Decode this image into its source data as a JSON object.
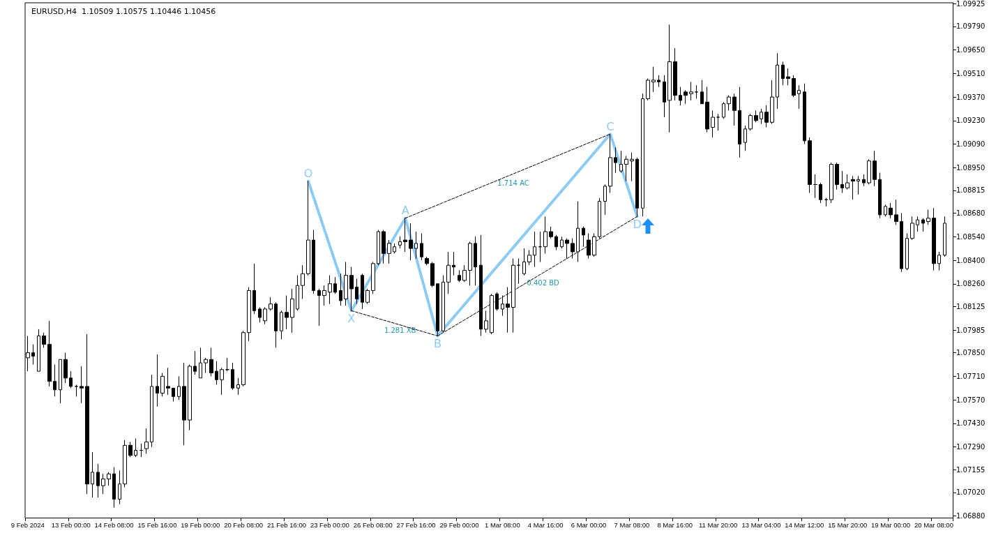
{
  "chart_data": {
    "type": "candlestick",
    "title": "EURUSD,H4  1.10509 1.10575 1.10446 1.10456",
    "categories": [
      "9 Feb 2024",
      null,
      null,
      null,
      null,
      null,
      null,
      null,
      "13 Feb 00:00",
      null,
      null,
      null,
      null,
      null,
      null,
      null,
      "14 Feb 08:00",
      null,
      null,
      null,
      null,
      null,
      null,
      null,
      "15 Feb 16:00",
      null,
      null,
      null,
      null,
      null,
      null,
      null,
      "19 Feb 00:00",
      null,
      null,
      null,
      null,
      null,
      null,
      null,
      "20 Feb 08:00",
      null,
      null,
      null,
      null,
      null,
      null,
      null,
      "21 Feb 16:00",
      null,
      null,
      null,
      null,
      null,
      null,
      null,
      "23 Feb 00:00",
      null,
      null,
      null,
      null,
      null,
      null,
      null,
      "26 Feb 08:00",
      null,
      null,
      null,
      null,
      null,
      null,
      null,
      "27 Feb 16:00",
      null,
      null,
      null,
      null,
      null,
      null,
      null,
      "29 Feb 00:00",
      null,
      null,
      null,
      null,
      null,
      null,
      null,
      "1 Mar 08:00",
      null,
      null,
      null,
      null,
      null,
      null,
      null,
      "4 Mar 16:00",
      null,
      null,
      null,
      null,
      null,
      null,
      null,
      "6 Mar 00:00",
      null,
      null,
      null,
      null,
      null,
      null,
      null,
      "7 Mar 08:00",
      null,
      null,
      null,
      null,
      null,
      null,
      null,
      "8 Mar 16:00",
      null,
      null,
      null,
      null,
      null,
      null,
      null,
      "11 Mar 20:00",
      null,
      null,
      null,
      null,
      null,
      null,
      null,
      "13 Mar 04:00",
      null,
      null,
      null,
      null,
      null,
      null,
      null,
      "14 Mar 12:00",
      null,
      null,
      null,
      null,
      null,
      null,
      null,
      "15 Mar 20:00",
      null,
      null,
      null,
      null,
      null,
      null,
      null,
      "19 Mar 00:00",
      null,
      null,
      null,
      null,
      null,
      null,
      null,
      "20 Mar 08:00",
      null,
      null
    ],
    "ohlc": [
      [
        1.0782,
        1.0795,
        1.0774,
        1.0785
      ],
      [
        1.0785,
        1.079,
        1.0778,
        1.0783
      ],
      [
        1.0774,
        1.0799,
        1.0774,
        1.0795
      ],
      [
        1.0795,
        1.0797,
        1.0788,
        1.079
      ],
      [
        1.079,
        1.0804,
        1.0765,
        1.0768
      ],
      [
        1.0768,
        1.0778,
        1.0759,
        1.0763
      ],
      [
        1.0763,
        1.0781,
        1.0755,
        1.0781
      ],
      [
        1.0781,
        1.0785,
        1.0767,
        1.077
      ],
      [
        1.077,
        1.0774,
        1.0764,
        1.0765
      ],
      [
        1.0765,
        1.0766,
        1.0759,
        1.0765
      ],
      [
        1.0765,
        1.0777,
        1.0755,
        1.0764
      ],
      [
        1.0765,
        1.0796,
        1.0701,
        1.0707
      ],
      [
        1.0707,
        1.0726,
        1.0699,
        1.0714
      ],
      [
        1.0714,
        1.0719,
        1.0699,
        1.0706
      ],
      [
        1.0706,
        1.0713,
        1.0701,
        1.071
      ],
      [
        1.071,
        1.0714,
        1.0706,
        1.0713
      ],
      [
        1.0713,
        1.0717,
        1.0693,
        1.0698
      ],
      [
        1.0698,
        1.0715,
        1.0695,
        1.0707
      ],
      [
        1.0707,
        1.0733,
        1.0705,
        1.073
      ],
      [
        1.073,
        1.0732,
        1.0723,
        1.0724
      ],
      [
        1.0724,
        1.0734,
        1.0723,
        1.0727
      ],
      [
        1.0727,
        1.0731,
        1.0723,
        1.0727
      ],
      [
        1.0728,
        1.074,
        1.0725,
        1.0732
      ],
      [
        1.0732,
        1.0772,
        1.0729,
        1.0765
      ],
      [
        1.0765,
        1.0784,
        1.0753,
        1.0761
      ],
      [
        1.0761,
        1.0773,
        1.0759,
        1.0771
      ],
      [
        1.0765,
        1.0776,
        1.076,
        1.0764
      ],
      [
        1.0764,
        1.0764,
        1.0756,
        1.0759
      ],
      [
        1.0759,
        1.0771,
        1.0757,
        1.0765
      ],
      [
        1.0765,
        1.0779,
        1.073,
        1.0745
      ],
      [
        1.0745,
        1.0778,
        1.0739,
        1.0777
      ],
      [
        1.0777,
        1.0786,
        1.0772,
        1.0774
      ],
      [
        1.077,
        1.0788,
        1.077,
        1.0779
      ],
      [
        1.0779,
        1.0782,
        1.0773,
        1.0781
      ],
      [
        1.0781,
        1.0788,
        1.0771,
        1.0773
      ],
      [
        1.0774,
        1.078,
        1.0766,
        1.0769
      ],
      [
        1.0769,
        1.0776,
        1.076,
        1.0775
      ],
      [
        1.0775,
        1.0782,
        1.0774,
        1.0775
      ],
      [
        1.0775,
        1.0779,
        1.0763,
        1.0764
      ],
      [
        1.0764,
        1.077,
        1.076,
        1.0766
      ],
      [
        1.0766,
        1.0798,
        1.0765,
        1.0797
      ],
      [
        1.0797,
        1.0824,
        1.0792,
        1.0822
      ],
      [
        1.0822,
        1.0838,
        1.0808,
        1.081
      ],
      [
        1.0811,
        1.0812,
        1.0803,
        1.0806
      ],
      [
        1.0804,
        1.0812,
        1.0802,
        1.0811
      ],
      [
        1.0811,
        1.0818,
        1.081,
        1.0814
      ],
      [
        1.0814,
        1.0815,
        1.0788,
        1.0798
      ],
      [
        1.0798,
        1.081,
        1.0793,
        1.0809
      ],
      [
        1.0809,
        1.0819,
        1.0799,
        1.0806
      ],
      [
        1.0806,
        1.0823,
        1.0797,
        1.0817
      ],
      [
        1.0811,
        1.0831,
        1.081,
        1.0825
      ],
      [
        1.0825,
        1.0837,
        1.0817,
        1.0832
      ],
      [
        1.0832,
        1.0887,
        1.0831,
        1.0852
      ],
      [
        1.0852,
        1.0858,
        1.082,
        1.0822
      ],
      [
        1.0822,
        1.0823,
        1.0801,
        1.0819
      ],
      [
        1.0819,
        1.0825,
        1.0813,
        1.0822
      ],
      [
        1.0821,
        1.0831,
        1.0814,
        1.0826
      ],
      [
        1.0826,
        1.083,
        1.082,
        1.0821
      ],
      [
        1.0822,
        1.0832,
        1.0813,
        1.0816
      ],
      [
        1.0817,
        1.0839,
        1.0813,
        1.0831
      ],
      [
        1.0831,
        1.0836,
        1.081,
        1.0823
      ],
      [
        1.0824,
        1.0829,
        1.0814,
        1.0817
      ],
      [
        1.0831,
        1.0832,
        1.0811,
        1.0815
      ],
      [
        1.0815,
        1.0823,
        1.0814,
        1.0822
      ],
      [
        1.0822,
        1.0839,
        1.082,
        1.0838
      ],
      [
        1.0838,
        1.0858,
        1.0837,
        1.0857
      ],
      [
        1.0857,
        1.0858,
        1.0838,
        1.0844
      ],
      [
        1.0844,
        1.0852,
        1.0838,
        1.085
      ],
      [
        1.0845,
        1.085,
        1.0844,
        1.0848
      ],
      [
        1.0849,
        1.0854,
        1.0847,
        1.0851
      ],
      [
        1.0852,
        1.0865,
        1.0845,
        1.0851
      ],
      [
        1.0852,
        1.0862,
        1.084,
        1.0847
      ],
      [
        1.0847,
        1.0857,
        1.0841,
        1.085
      ],
      [
        1.085,
        1.0856,
        1.084,
        1.0842
      ],
      [
        1.0841,
        1.0842,
        1.0837,
        1.0838
      ],
      [
        1.0838,
        1.0839,
        1.0824,
        1.0825
      ],
      [
        1.0826,
        1.0826,
        1.0795,
        1.0798
      ],
      [
        1.0798,
        1.0831,
        1.0797,
        1.0827
      ],
      [
        1.0827,
        1.0845,
        1.082,
        1.0837
      ],
      [
        1.0837,
        1.0845,
        1.0831,
        1.0836
      ],
      [
        1.0831,
        1.0834,
        1.0827,
        1.0828
      ],
      [
        1.0828,
        1.0837,
        1.0827,
        1.0834
      ],
      [
        1.0834,
        1.0851,
        1.0825,
        1.085
      ],
      [
        1.085,
        1.0854,
        1.0825,
        1.0836
      ],
      [
        1.0837,
        1.0855,
        1.0795,
        1.0799
      ],
      [
        1.0799,
        1.081,
        1.0797,
        1.0804
      ],
      [
        1.0797,
        1.082,
        1.0796,
        1.0819
      ],
      [
        1.082,
        1.0821,
        1.081,
        1.0811
      ],
      [
        1.0811,
        1.0819,
        1.0807,
        1.0814
      ],
      [
        1.0814,
        1.0824,
        1.0797,
        1.0812
      ],
      [
        1.0812,
        1.0841,
        1.0797,
        1.0837
      ],
      [
        1.0837,
        1.0841,
        1.0826,
        1.0837
      ],
      [
        1.0832,
        1.0847,
        1.0831,
        1.0839
      ],
      [
        1.0839,
        1.0846,
        1.0837,
        1.0843
      ],
      [
        1.0843,
        1.0857,
        1.0836,
        1.0848
      ],
      [
        1.0848,
        1.0857,
        1.0839,
        1.0848
      ],
      [
        1.0848,
        1.0866,
        1.0844,
        1.0857
      ],
      [
        1.0857,
        1.086,
        1.0853,
        1.0854
      ],
      [
        1.0854,
        1.0855,
        1.0846,
        1.0848
      ],
      [
        1.0848,
        1.0854,
        1.0847,
        1.0852
      ],
      [
        1.0852,
        1.0853,
        1.0841,
        1.085
      ],
      [
        1.085,
        1.0853,
        1.0841,
        1.0845
      ],
      [
        1.0845,
        1.0875,
        1.0839,
        1.0859
      ],
      [
        1.0859,
        1.086,
        1.0848,
        1.0855
      ],
      [
        1.0852,
        1.0856,
        1.0841,
        1.0843
      ],
      [
        1.0843,
        1.0856,
        1.0842,
        1.0854
      ],
      [
        1.0854,
        1.0877,
        1.0853,
        1.0875
      ],
      [
        1.0875,
        1.0885,
        1.0867,
        1.0884
      ],
      [
        1.0884,
        1.0915,
        1.088,
        1.0901
      ],
      [
        1.0901,
        1.0907,
        1.0892,
        1.0898
      ],
      [
        1.0893,
        1.0905,
        1.0892,
        1.0897
      ],
      [
        1.0897,
        1.0902,
        1.0887,
        1.09
      ],
      [
        1.0899,
        1.0904,
        1.0887,
        1.09
      ],
      [
        1.09,
        1.0901,
        1.0866,
        1.0871
      ],
      [
        1.0871,
        1.0939,
        1.0866,
        1.0936
      ],
      [
        1.0936,
        1.0948,
        1.0935,
        1.0947
      ],
      [
        1.0946,
        1.0955,
        1.094,
        1.0947
      ],
      [
        1.0947,
        1.095,
        1.0943,
        1.0946
      ],
      [
        1.0946,
        1.095,
        1.0925,
        1.0934
      ],
      [
        1.0935,
        1.098,
        1.0916,
        1.0958
      ],
      [
        1.0958,
        1.0966,
        1.0935,
        1.0938
      ],
      [
        1.0938,
        1.0943,
        1.0932,
        1.0935
      ],
      [
        1.094,
        1.0941,
        1.0933,
        1.0938
      ],
      [
        1.0939,
        1.0946,
        1.0935,
        1.094
      ],
      [
        1.094,
        1.0944,
        1.0936,
        1.094
      ],
      [
        1.094,
        1.0947,
        1.0933,
        1.0933
      ],
      [
        1.0934,
        1.0943,
        1.0916,
        1.0918
      ],
      [
        1.0919,
        1.0929,
        1.0913,
        1.0925
      ],
      [
        1.0925,
        1.0927,
        1.0917,
        1.0925
      ],
      [
        1.0925,
        1.0934,
        1.0924,
        1.0933
      ],
      [
        1.0933,
        1.0938,
        1.0929,
        1.0937
      ],
      [
        1.0937,
        1.0939,
        1.092,
        1.0929
      ],
      [
        1.0929,
        1.0943,
        1.0901,
        1.0909
      ],
      [
        1.091,
        1.092,
        1.0905,
        1.0918
      ],
      [
        1.0918,
        1.0927,
        1.0917,
        1.0926
      ],
      [
        1.0926,
        1.0929,
        1.0922,
        1.0923
      ],
      [
        1.0924,
        1.093,
        1.0921,
        1.0928
      ],
      [
        1.0928,
        1.0932,
        1.0919,
        1.0922
      ],
      [
        1.0922,
        1.0947,
        1.0921,
        1.0937
      ],
      [
        1.0937,
        1.0963,
        1.093,
        1.0956
      ],
      [
        1.0956,
        1.0958,
        1.0944,
        1.0948
      ],
      [
        1.0949,
        1.0954,
        1.0944,
        1.0948
      ],
      [
        1.0948,
        1.095,
        1.0937,
        1.0938
      ],
      [
        1.0939,
        1.0944,
        1.093,
        1.0941
      ],
      [
        1.094,
        1.0945,
        1.0909,
        1.0911
      ],
      [
        1.0911,
        1.0913,
        1.088,
        1.0885
      ],
      [
        1.0885,
        1.0891,
        1.0877,
        1.0885
      ],
      [
        1.0885,
        1.0886,
        1.0874,
        1.0876
      ],
      [
        1.0876,
        1.0877,
        1.0872,
        1.0876
      ],
      [
        1.0876,
        1.0898,
        1.0874,
        1.0897
      ],
      [
        1.0897,
        1.0898,
        1.0882,
        1.0885
      ],
      [
        1.0885,
        1.0893,
        1.088,
        1.0883
      ],
      [
        1.0883,
        1.0891,
        1.0882,
        1.0886
      ],
      [
        1.0888,
        1.089,
        1.0876,
        1.0887
      ],
      [
        1.0887,
        1.089,
        1.0879,
        1.0888
      ],
      [
        1.0888,
        1.0891,
        1.0884,
        1.0886
      ],
      [
        1.0886,
        1.09,
        1.0885,
        1.0899
      ],
      [
        1.0899,
        1.0905,
        1.0884,
        1.0888
      ],
      [
        1.0888,
        1.0892,
        1.0865,
        1.0867
      ],
      [
        1.0867,
        1.0873,
        1.0866,
        1.0872
      ],
      [
        1.0871,
        1.0874,
        1.0865,
        1.0867
      ],
      [
        1.0867,
        1.0876,
        1.0861,
        1.0863
      ],
      [
        1.0863,
        1.0868,
        1.0833,
        1.0835
      ],
      [
        1.0835,
        1.0856,
        1.0834,
        1.0853
      ],
      [
        1.0853,
        1.0866,
        1.0852,
        1.0862
      ],
      [
        1.0861,
        1.0866,
        1.0857,
        1.0864
      ],
      [
        1.0864,
        1.0865,
        1.0857,
        1.0862
      ],
      [
        1.0863,
        1.087,
        1.0861,
        1.0865
      ],
      [
        1.0865,
        1.0871,
        1.0834,
        1.0838
      ],
      [
        1.0838,
        1.0845,
        1.0834,
        1.0843
      ],
      [
        1.0843,
        1.0866,
        1.0842,
        1.0862
      ]
    ],
    "series": [
      {
        "type": "line",
        "color": "#8ccbf4",
        "line_style": "solid",
        "values": [
          null,
          null,
          null,
          null,
          null,
          null,
          null,
          null,
          null,
          null,
          null,
          null,
          null,
          null,
          null,
          null,
          null,
          null,
          null,
          null,
          null,
          null,
          null,
          null,
          null,
          null,
          null,
          null,
          null,
          null,
          null,
          null,
          null,
          null,
          null,
          null,
          null,
          null,
          null,
          null,
          null,
          null,
          null,
          null,
          null,
          null,
          null,
          null,
          null,
          null,
          null,
          null,
          1.0887,
          null,
          null,
          null,
          null,
          null,
          null,
          null,
          1.081,
          null,
          null,
          null,
          null,
          null,
          null,
          null,
          null,
          null,
          1.0865,
          null,
          null,
          null,
          null,
          null,
          1.0795,
          null,
          null,
          null,
          null,
          null,
          null,
          null,
          null,
          null,
          null,
          null,
          null,
          null,
          null,
          null,
          null,
          null,
          null,
          null,
          null,
          null,
          null,
          null,
          null,
          null,
          null,
          null,
          null,
          null,
          null,
          null,
          1.0915,
          null,
          null,
          null,
          null,
          1.0866,
          null,
          null,
          null,
          null,
          null,
          null,
          null,
          null,
          null,
          null,
          null,
          null,
          null,
          null,
          null,
          null,
          null,
          null,
          null,
          null,
          null,
          null,
          null,
          null,
          null,
          null,
          null,
          null,
          null,
          null,
          null,
          null,
          null,
          null,
          null,
          null,
          null,
          null,
          null,
          null,
          null,
          null,
          null,
          null,
          null,
          null,
          null,
          null,
          null,
          null,
          null,
          null,
          null,
          null,
          null,
          null,
          null
        ],
        "value_labels": [
          null,
          null,
          null,
          null,
          null,
          null,
          null,
          null,
          null,
          null,
          null,
          null,
          null,
          null,
          null,
          null,
          null,
          null,
          null,
          null,
          null,
          null,
          null,
          null,
          null,
          null,
          null,
          null,
          null,
          null,
          null,
          null,
          null,
          null,
          null,
          null,
          null,
          null,
          null,
          null,
          null,
          null,
          null,
          null,
          null,
          null,
          null,
          null,
          null,
          null,
          null,
          null,
          "O",
          null,
          null,
          null,
          null,
          null,
          null,
          null,
          "X",
          null,
          null,
          null,
          null,
          null,
          null,
          null,
          null,
          null,
          "A",
          null,
          null,
          null,
          null,
          null,
          "B",
          null,
          null,
          null,
          null,
          null,
          null,
          null,
          null,
          null,
          null,
          null,
          null,
          null,
          null,
          null,
          null,
          null,
          null,
          null,
          null,
          null,
          null,
          null,
          null,
          null,
          null,
          null,
          null,
          null,
          null,
          null,
          "C",
          null,
          null,
          null,
          null,
          "D",
          null,
          null,
          null,
          null,
          null,
          null,
          null,
          null,
          null,
          null,
          null,
          null,
          null,
          null,
          null,
          null,
          null,
          null,
          null,
          null,
          null,
          null,
          null,
          null,
          null,
          null,
          null,
          null,
          null,
          null,
          null,
          null,
          null,
          null,
          null,
          null,
          null,
          null,
          null,
          null,
          null,
          null,
          null,
          null,
          null,
          null,
          null,
          null,
          null,
          null,
          null,
          null,
          null,
          null,
          null,
          null,
          null
        ]
      },
      {
        "type": "line",
        "color": "#000000",
        "line_style": "dashed",
        "values": [
          null,
          null,
          null,
          null,
          null,
          null,
          null,
          null,
          null,
          null,
          null,
          null,
          null,
          null,
          null,
          null,
          null,
          null,
          null,
          null,
          null,
          null,
          null,
          null,
          null,
          null,
          null,
          null,
          null,
          null,
          null,
          null,
          null,
          null,
          null,
          null,
          null,
          null,
          null,
          null,
          null,
          null,
          null,
          null,
          null,
          null,
          null,
          null,
          null,
          null,
          null,
          null,
          null,
          null,
          null,
          null,
          null,
          null,
          null,
          null,
          1.081,
          null,
          null,
          null,
          null,
          null,
          null,
          null,
          null,
          null,
          null,
          null,
          null,
          null,
          null,
          null,
          1.0795,
          null,
          null,
          null,
          null,
          null,
          null,
          null,
          null,
          null,
          null,
          null,
          null,
          null,
          null,
          null,
          null,
          null,
          null,
          null,
          null,
          null,
          null,
          null,
          null,
          null,
          null,
          null,
          null,
          null,
          null,
          null,
          null,
          null,
          null,
          null,
          null,
          null,
          null,
          null,
          null,
          null,
          null,
          null,
          null,
          null,
          null,
          null,
          null,
          null,
          null,
          null,
          null,
          null,
          null,
          null,
          null,
          null,
          null,
          null,
          null,
          null,
          null,
          null,
          null,
          null,
          null,
          null,
          null,
          null,
          null,
          null,
          null,
          null,
          null,
          null,
          null,
          null,
          null,
          null,
          null,
          null,
          null,
          null,
          null,
          null,
          null,
          null,
          null,
          null,
          null,
          null,
          null,
          null,
          null
        ]
      },
      {
        "type": "line",
        "color": "#000000",
        "line_style": "dashed",
        "values": [
          null,
          null,
          null,
          null,
          null,
          null,
          null,
          null,
          null,
          null,
          null,
          null,
          null,
          null,
          null,
          null,
          null,
          null,
          null,
          null,
          null,
          null,
          null,
          null,
          null,
          null,
          null,
          null,
          null,
          null,
          null,
          null,
          null,
          null,
          null,
          null,
          null,
          null,
          null,
          null,
          null,
          null,
          null,
          null,
          null,
          null,
          null,
          null,
          null,
          null,
          null,
          null,
          null,
          null,
          null,
          null,
          null,
          null,
          null,
          null,
          null,
          null,
          null,
          null,
          null,
          null,
          null,
          null,
          null,
          null,
          1.0865,
          null,
          null,
          null,
          null,
          null,
          null,
          null,
          null,
          null,
          null,
          null,
          null,
          null,
          null,
          null,
          null,
          null,
          null,
          null,
          null,
          null,
          null,
          null,
          null,
          null,
          null,
          null,
          null,
          null,
          null,
          null,
          null,
          null,
          null,
          null,
          null,
          null,
          1.0915,
          null,
          null,
          null,
          null,
          null,
          null,
          null,
          null,
          null,
          null,
          null,
          null,
          null,
          null,
          null,
          null,
          null,
          null,
          null,
          null,
          null,
          null,
          null,
          null,
          null,
          null,
          null,
          null,
          null,
          null,
          null,
          null,
          null,
          null,
          null,
          null,
          null,
          null,
          null,
          null,
          null,
          null,
          null,
          null,
          null,
          null,
          null,
          null,
          null,
          null,
          null,
          null,
          null,
          null,
          null,
          null,
          null,
          null,
          null,
          null,
          null,
          null
        ]
      },
      {
        "type": "line",
        "color": "#000000",
        "line_style": "dashed",
        "values": [
          null,
          null,
          null,
          null,
          null,
          null,
          null,
          null,
          null,
          null,
          null,
          null,
          null,
          null,
          null,
          null,
          null,
          null,
          null,
          null,
          null,
          null,
          null,
          null,
          null,
          null,
          null,
          null,
          null,
          null,
          null,
          null,
          null,
          null,
          null,
          null,
          null,
          null,
          null,
          null,
          null,
          null,
          null,
          null,
          null,
          null,
          null,
          null,
          null,
          null,
          null,
          null,
          null,
          null,
          null,
          null,
          null,
          null,
          null,
          null,
          null,
          null,
          null,
          null,
          null,
          null,
          null,
          null,
          null,
          null,
          null,
          null,
          null,
          null,
          null,
          null,
          1.0795,
          null,
          null,
          null,
          null,
          null,
          null,
          null,
          null,
          null,
          null,
          null,
          null,
          null,
          null,
          null,
          null,
          null,
          null,
          null,
          null,
          null,
          null,
          null,
          null,
          null,
          null,
          null,
          null,
          null,
          null,
          null,
          null,
          null,
          null,
          null,
          null,
          1.0866,
          null,
          null,
          null,
          null,
          null,
          null,
          null,
          null,
          null,
          null,
          null,
          null,
          null,
          null,
          null,
          null,
          null,
          null,
          null,
          null,
          null,
          null,
          null,
          null,
          null,
          null,
          null,
          null,
          null,
          null,
          null,
          null,
          null,
          null,
          null,
          null,
          null,
          null,
          null,
          null,
          null,
          null,
          null,
          null,
          null,
          null,
          null,
          null,
          null,
          null,
          null,
          null,
          null,
          null,
          null,
          null,
          null
        ]
      }
    ],
    "annotations": [
      "1.281 XB",
      "1.714 AC",
      "0.402 BD"
    ],
    "ylim": [
      1.0687,
      1.0993
    ],
    "yticks": [
      {
        "value": 1.0688,
        "label": "1.06880"
      },
      {
        "value": 1.0702,
        "label": "1.07020"
      },
      {
        "value": 1.07155,
        "label": "1.07155"
      },
      {
        "value": 1.0729,
        "label": "1.07290"
      },
      {
        "value": 1.0743,
        "label": "1.07430"
      },
      {
        "value": 1.0757,
        "label": "1.07570"
      },
      {
        "value": 1.0771,
        "label": "1.07710"
      },
      {
        "value": 1.0785,
        "label": "1.07850"
      },
      {
        "value": 1.07985,
        "label": "1.07985"
      },
      {
        "value": 1.08125,
        "label": "1.08125"
      },
      {
        "value": 1.0826,
        "label": "1.08260"
      },
      {
        "value": 1.084,
        "label": "1.08400"
      },
      {
        "value": 1.0854,
        "label": "1.08540"
      },
      {
        "value": 1.0868,
        "label": "1.08680"
      },
      {
        "value": 1.08815,
        "label": "1.08815"
      },
      {
        "value": 1.0895,
        "label": "1.08950"
      },
      {
        "value": 1.0909,
        "label": "1.09090"
      },
      {
        "value": 1.0923,
        "label": "1.09230"
      },
      {
        "value": 1.0937,
        "label": "1.09370"
      },
      {
        "value": 1.0951,
        "label": "1.09510"
      },
      {
        "value": 1.0965,
        "label": "1.09650"
      },
      {
        "value": 1.0979,
        "label": "1.09790"
      },
      {
        "value": 1.09925,
        "label": "1.09925"
      }
    ]
  }
}
